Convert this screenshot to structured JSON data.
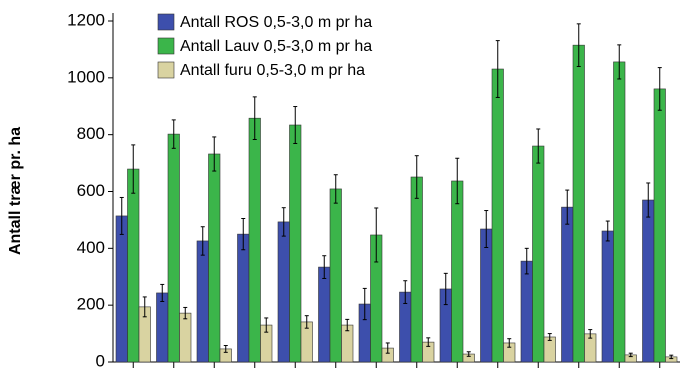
{
  "chart_data": {
    "type": "bar",
    "y_label": "Antall trær pr. ha",
    "categories": [
      null,
      null,
      null,
      null,
      null,
      null,
      null,
      null,
      null,
      null,
      null,
      null,
      null,
      null
    ],
    "series": [
      {
        "name": "Antall ROS 0,5-3,0 m pr ha",
        "color": "#3d4fac",
        "values": [
          514,
          243,
          426,
          450,
          493,
          334,
          204,
          246,
          257,
          468,
          355,
          545,
          461,
          570
        ],
        "errors": [
          65,
          30,
          50,
          55,
          50,
          40,
          55,
          40,
          55,
          65,
          45,
          60,
          35,
          60
        ]
      },
      {
        "name": "Antall Lauv 0,5-3,0 m pr ha",
        "color": "#3bb54a",
        "values": [
          679,
          802,
          732,
          858,
          834,
          609,
          447,
          651,
          637,
          1031,
          760,
          1115,
          1056,
          961
        ],
        "errors": [
          85,
          50,
          60,
          75,
          65,
          50,
          95,
          75,
          80,
          100,
          60,
          75,
          60,
          75
        ]
      },
      {
        "name": "Antall furu 0,5-3,0 m pr ha",
        "color": "#d9d3a1",
        "values": [
          194,
          172,
          46,
          130,
          141,
          130,
          49,
          70,
          28,
          67,
          88,
          99,
          25,
          18
        ],
        "errors": [
          35,
          20,
          12,
          25,
          22,
          20,
          18,
          15,
          8,
          15,
          12,
          15,
          6,
          6
        ]
      }
    ],
    "ylim": [
      0,
      1200
    ],
    "yticks": [
      0,
      200,
      400,
      600,
      800,
      1000,
      1200
    ],
    "grid": false,
    "legend": "top-left"
  }
}
